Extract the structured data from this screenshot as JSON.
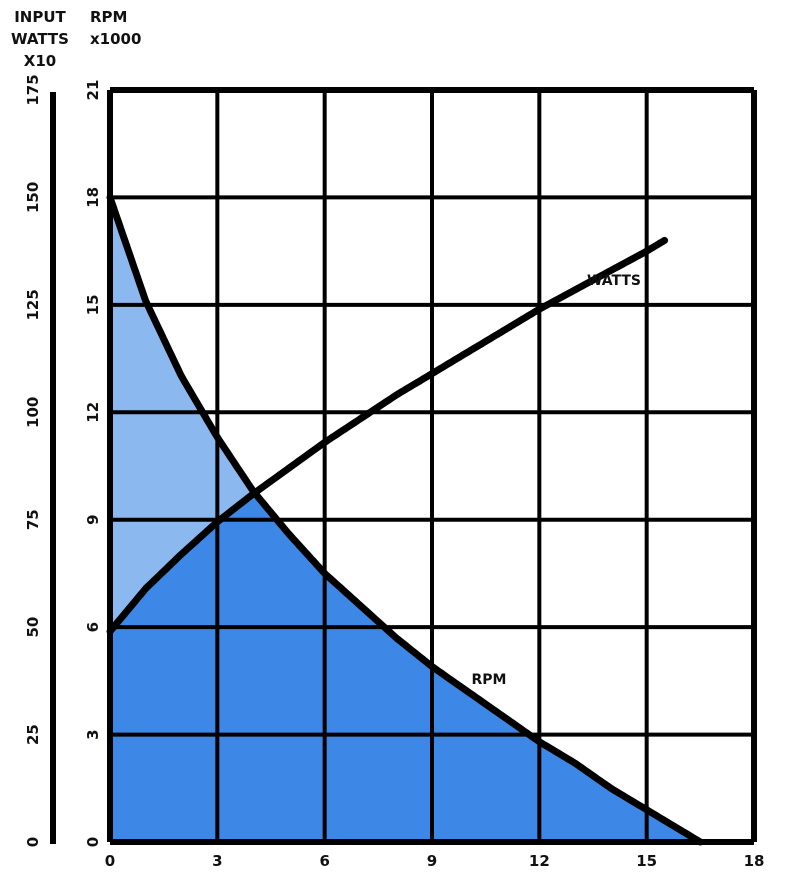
{
  "chart_data": {
    "type": "line",
    "left_axis_title": [
      "INPUT",
      "WATTS",
      "X10"
    ],
    "rpm_axis_title": [
      "RPM",
      "x1000"
    ],
    "x_ticks": [
      "0",
      "3",
      "6",
      "9",
      "12",
      "15",
      "18"
    ],
    "rpm_ticks": [
      "0",
      "3",
      "6",
      "9",
      "12",
      "15",
      "18",
      "21"
    ],
    "watts_ticks": [
      "0",
      "25",
      "50",
      "75",
      "100",
      "125",
      "150",
      "175"
    ],
    "xlim": [
      0,
      18
    ],
    "rpm_lim": [
      0,
      21
    ],
    "watts_lim": [
      0,
      175
    ],
    "grid": true,
    "series": [
      {
        "name": "RPM",
        "axis": "rpm",
        "x": [
          0,
          1,
          2,
          3,
          4,
          5,
          6,
          7,
          8,
          9,
          10,
          11,
          12,
          13,
          14,
          15,
          16,
          16.5
        ],
        "y": [
          18,
          15.1,
          13.0,
          11.3,
          9.8,
          8.6,
          7.5,
          6.6,
          5.7,
          4.9,
          4.2,
          3.5,
          2.8,
          2.2,
          1.5,
          0.9,
          0.3,
          0
        ]
      },
      {
        "name": "WATTS",
        "axis": "watts",
        "x": [
          0,
          1,
          2,
          3,
          4,
          5,
          6,
          7,
          8,
          9,
          10,
          11,
          12,
          13,
          14,
          15,
          15.5
        ],
        "y": [
          49,
          59,
          67,
          74.5,
          81,
          87,
          93,
          98.5,
          104,
          109,
          114,
          119,
          124,
          128.5,
          133,
          137.5,
          140
        ]
      }
    ],
    "colors": {
      "under_both": "#3d88e6",
      "under_rpm_only": "#8bb8ef",
      "line": "#000000",
      "grid": "#000000"
    }
  }
}
